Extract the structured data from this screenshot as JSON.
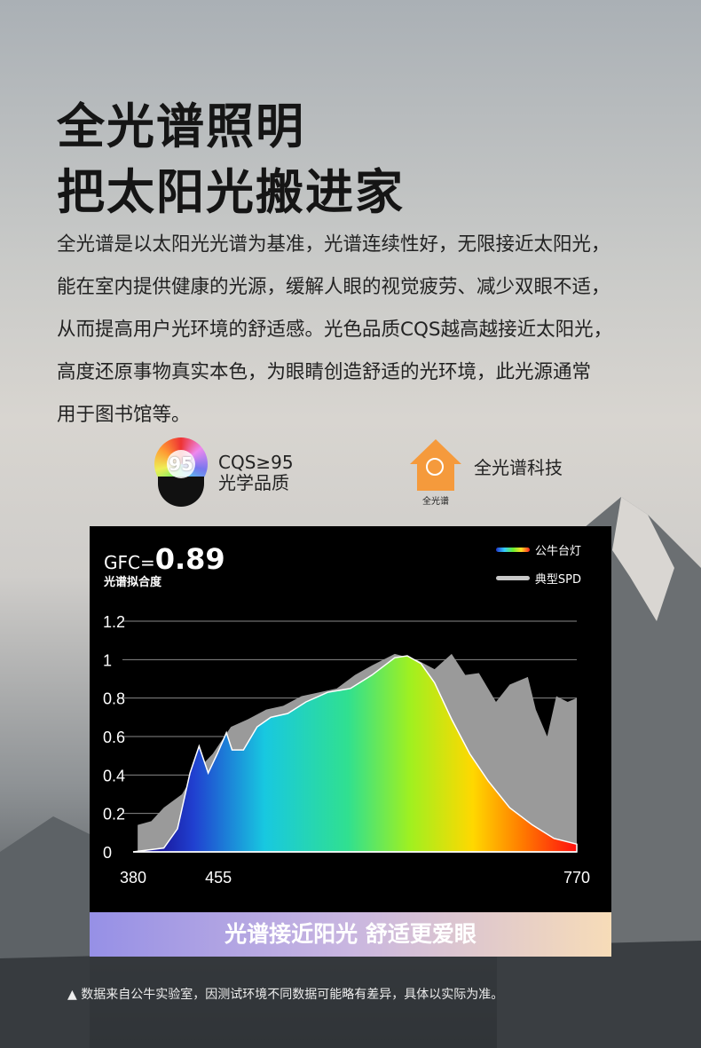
{
  "headline": {
    "line1": "全光谱照明",
    "line2": "把太阳光搬进家"
  },
  "description": [
    "全光谱是以太阳光光谱为基准，光谱连续性好，无限接近太阳光，",
    "能在室内提供健康的光源，缓解人眼的视觉疲劳、减少双眼不适，",
    "从而提高用户光环境的舒适感。光色品质CQS越高越接近太阳光，",
    "高度还原事物真实本色，为眼睛创造舒适的光环境，此光源通常",
    "用于图书馆等。"
  ],
  "features": [
    {
      "icon": "cqs-badge-icon",
      "badge": "95",
      "line1": "CQS≥95",
      "line2": "光学品质"
    },
    {
      "icon": "house-sun-icon",
      "badge": "全光谱",
      "line1": "全光谱科技"
    }
  ],
  "chart_data": {
    "type": "area",
    "gfc_label": "GFC=",
    "gfc_value": "0.89",
    "subtitle": "光谱拟合度",
    "xlim": [
      380,
      770
    ],
    "ylim": [
      0,
      1.2
    ],
    "x_ticks": [
      "380",
      "455",
      "770"
    ],
    "y_ticks": [
      "0",
      "0.2",
      "0.4",
      "0.6",
      "0.8",
      "1",
      "1.2"
    ],
    "grid": true,
    "legend": "top-right",
    "series": [
      {
        "name": "典型SPD",
        "color": "#9a9a9a",
        "points": [
          [
            384,
            0.14
          ],
          [
            396,
            0.16
          ],
          [
            407,
            0.23
          ],
          [
            423,
            0.3
          ],
          [
            434,
            0.41
          ],
          [
            450,
            0.51
          ],
          [
            466,
            0.65
          ],
          [
            481,
            0.69
          ],
          [
            497,
            0.74
          ],
          [
            512,
            0.76
          ],
          [
            528,
            0.81
          ],
          [
            544,
            0.83
          ],
          [
            559,
            0.85
          ],
          [
            575,
            0.92
          ],
          [
            590,
            0.97
          ],
          [
            610,
            1.03
          ],
          [
            629,
            1.0
          ],
          [
            645,
            0.95
          ],
          [
            660,
            1.03
          ],
          [
            672,
            0.92
          ],
          [
            684,
            0.93
          ],
          [
            699,
            0.78
          ],
          [
            711,
            0.87
          ],
          [
            727,
            0.91
          ],
          [
            734,
            0.74
          ],
          [
            744,
            0.6
          ],
          [
            752,
            0.81
          ],
          [
            762,
            0.78
          ],
          [
            770,
            0.8
          ]
        ]
      },
      {
        "name": "公牛台灯",
        "color": "spectrum",
        "points": [
          [
            380,
            0
          ],
          [
            407,
            0.02
          ],
          [
            419,
            0.12
          ],
          [
            430,
            0.41
          ],
          [
            438,
            0.55
          ],
          [
            446,
            0.41
          ],
          [
            454,
            0.51
          ],
          [
            462,
            0.62
          ],
          [
            467,
            0.53
          ],
          [
            477,
            0.53
          ],
          [
            489,
            0.65
          ],
          [
            501,
            0.7
          ],
          [
            516,
            0.72
          ],
          [
            532,
            0.78
          ],
          [
            551,
            0.83
          ],
          [
            571,
            0.85
          ],
          [
            590,
            0.92
          ],
          [
            610,
            1.01
          ],
          [
            621,
            1.02
          ],
          [
            633,
            0.98
          ],
          [
            645,
            0.88
          ],
          [
            660,
            0.69
          ],
          [
            676,
            0.51
          ],
          [
            692,
            0.37
          ],
          [
            711,
            0.23
          ],
          [
            731,
            0.14
          ],
          [
            750,
            0.07
          ],
          [
            770,
            0.04
          ]
        ]
      }
    ]
  },
  "banner": "光谱接近阳光 舒适更爱眼",
  "footnote": "数据来自公牛实验室，因测试环境不同数据可能略有差异，具体以实际为准。"
}
